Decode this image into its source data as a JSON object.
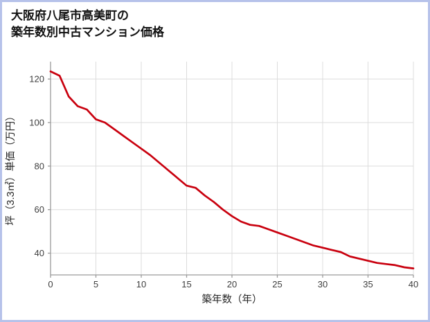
{
  "title": {
    "line1": "大阪府八尾市高美町の",
    "line2": "築年数別中古マンション価格"
  },
  "chart_data": {
    "type": "line",
    "title": "大阪府八尾市高美町の築年数別中古マンション価格",
    "xlabel": "築年数（年）",
    "ylabel": "坪（3.3㎡）単価（万円）",
    "xlim": [
      0,
      40
    ],
    "ylim": [
      30,
      128
    ],
    "xticks": [
      0,
      5,
      10,
      15,
      20,
      25,
      30,
      35,
      40
    ],
    "yticks": [
      40,
      60,
      80,
      100,
      120
    ],
    "grid": true,
    "legend": false,
    "x": [
      0,
      1,
      2,
      3,
      4,
      5,
      6,
      7,
      8,
      9,
      10,
      11,
      12,
      13,
      14,
      15,
      16,
      17,
      18,
      19,
      20,
      21,
      22,
      23,
      24,
      25,
      26,
      27,
      28,
      29,
      30,
      31,
      32,
      33,
      34,
      35,
      36,
      37,
      38,
      39,
      40
    ],
    "series": [
      {
        "name": "坪単価",
        "values": [
          123.5,
          121.5,
          112,
          107.5,
          106,
          101.5,
          100,
          97,
          94,
          91,
          88,
          85,
          81.5,
          78,
          74.5,
          71,
          70,
          66.5,
          63.5,
          60,
          57,
          54.5,
          53,
          52.5,
          51,
          49.5,
          48,
          46.5,
          45,
          43.5,
          42.5,
          41.5,
          40.5,
          38.5,
          37.5,
          36.5,
          35.5,
          35,
          34.5,
          33.5,
          33
        ]
      }
    ],
    "style": {
      "line_color": "#c9000e",
      "grid_color": "#dcdcdc",
      "axis_color": "#9a9a9a",
      "text_color": "#333333",
      "frame_color": "#b6c2ea",
      "background": "#ffffff"
    }
  }
}
